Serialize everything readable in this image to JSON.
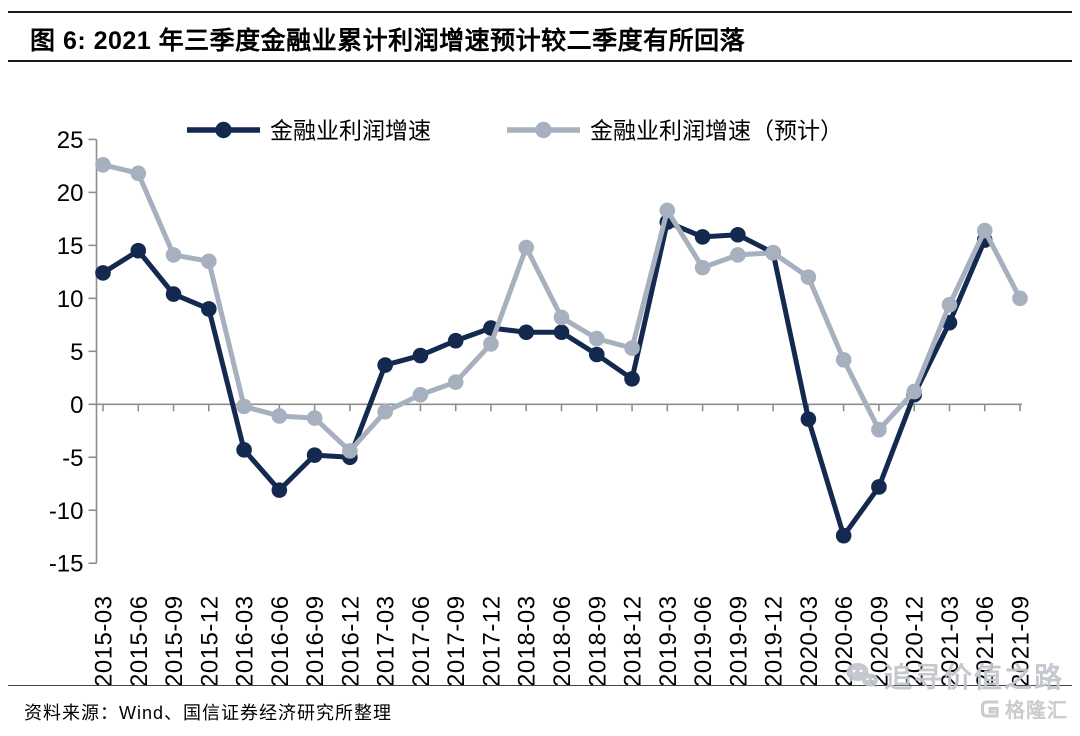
{
  "figure": {
    "title": "图 6: 2021 年三季度金融业累计利润增速预计较二季度有所回落",
    "source": "资料来源：Wind、国信证券经济研究所整理"
  },
  "watermark": {
    "text": "追寻价值之路",
    "logo_text": "格隆汇",
    "color": "#c2c6cc"
  },
  "chart_data": {
    "type": "line",
    "title": "",
    "categories": [
      "2015-03",
      "2015-06",
      "2015-09",
      "2015-12",
      "2016-03",
      "2016-06",
      "2016-09",
      "2016-12",
      "2017-03",
      "2017-06",
      "2017-09",
      "2017-12",
      "2018-03",
      "2018-06",
      "2018-09",
      "2018-12",
      "2019-03",
      "2019-06",
      "2019-09",
      "2019-12",
      "2020-03",
      "2020-06",
      "2020-09",
      "2020-12",
      "2021-03",
      "2021-06",
      "2021-09"
    ],
    "series": [
      {
        "name": "金融业利润增速",
        "color": "#13294f",
        "marker": "circle",
        "values": [
          12.4,
          14.5,
          10.4,
          9.0,
          -4.3,
          -8.1,
          -4.8,
          -5.0,
          3.7,
          4.6,
          6.0,
          7.2,
          6.8,
          6.8,
          4.7,
          2.4,
          17.2,
          15.8,
          16.0,
          14.3,
          -1.4,
          -12.4,
          -7.8,
          0.9,
          7.7,
          15.5,
          null
        ]
      },
      {
        "name": "金融业利润增速（预计）",
        "color": "#a6b0bf",
        "marker": "circle",
        "values": [
          22.6,
          21.8,
          14.1,
          13.5,
          -0.2,
          -1.1,
          -1.3,
          -4.4,
          -0.7,
          0.9,
          2.1,
          5.7,
          14.8,
          8.2,
          6.2,
          5.3,
          18.3,
          12.9,
          14.1,
          14.3,
          12.0,
          4.2,
          -2.4,
          1.2,
          9.4,
          16.4,
          10.0
        ]
      }
    ],
    "xlabel": "",
    "ylabel": "",
    "ylim": [
      -15,
      25
    ],
    "ytick_step": 5,
    "yticks": [
      25,
      20,
      15,
      10,
      5,
      0,
      -5,
      -10,
      -15
    ],
    "x_label_rotation": -90,
    "legend_position": "top-center",
    "gridlines": "zero-line-only",
    "axis_color": "#8e8e8e"
  }
}
